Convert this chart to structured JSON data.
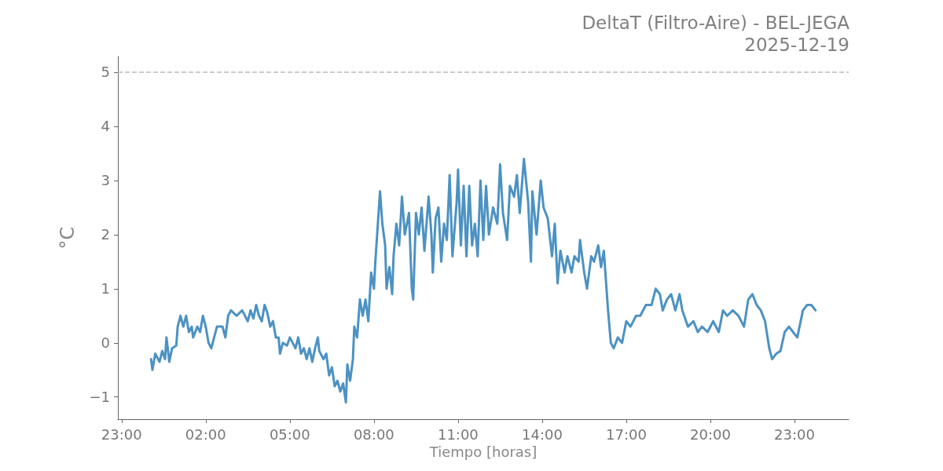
{
  "chart_data": {
    "type": "line",
    "title": "DeltaT (Filtro-Aire) - BEL-JEGA",
    "subtitle": "2025-12-19",
    "xlabel": "Tiempo [horas]",
    "ylabel": "°C",
    "x": [
      "2025-12-19T00:03",
      "2025-12-19T00:06",
      "2025-12-19T00:12",
      "2025-12-19T00:21",
      "2025-12-19T00:27",
      "2025-12-19T00:33",
      "2025-12-19T00:36",
      "2025-12-19T00:42",
      "2025-12-19T00:48",
      "2025-12-19T00:57",
      "2025-12-19T01:00",
      "2025-12-19T01:06",
      "2025-12-19T01:12",
      "2025-12-19T01:18",
      "2025-12-19T01:24",
      "2025-12-19T01:30",
      "2025-12-19T01:33",
      "2025-12-19T01:42",
      "2025-12-19T01:48",
      "2025-12-19T01:54",
      "2025-12-19T02:00",
      "2025-12-19T02:06",
      "2025-12-19T02:12",
      "2025-12-19T02:18",
      "2025-12-19T02:24",
      "2025-12-19T02:36",
      "2025-12-19T02:42",
      "2025-12-19T02:48",
      "2025-12-19T02:54",
      "2025-12-19T03:06",
      "2025-12-19T03:18",
      "2025-12-19T03:30",
      "2025-12-19T03:36",
      "2025-12-19T03:42",
      "2025-12-19T03:48",
      "2025-12-19T03:54",
      "2025-12-19T04:00",
      "2025-12-19T04:06",
      "2025-12-19T04:12",
      "2025-12-19T04:18",
      "2025-12-19T04:24",
      "2025-12-19T04:30",
      "2025-12-19T04:36",
      "2025-12-19T04:39",
      "2025-12-19T04:45",
      "2025-12-19T04:54",
      "2025-12-19T05:00",
      "2025-12-19T05:12",
      "2025-12-19T05:18",
      "2025-12-19T05:24",
      "2025-12-19T05:30",
      "2025-12-19T05:36",
      "2025-12-19T05:42",
      "2025-12-19T05:48",
      "2025-12-19T05:54",
      "2025-12-19T06:00",
      "2025-12-19T06:03",
      "2025-12-19T06:12",
      "2025-12-19T06:18",
      "2025-12-19T06:24",
      "2025-12-19T06:30",
      "2025-12-19T06:36",
      "2025-12-19T06:42",
      "2025-12-19T06:48",
      "2025-12-19T06:54",
      "2025-12-19T07:00",
      "2025-12-19T07:03",
      "2025-12-19T07:09",
      "2025-12-19T07:15",
      "2025-12-19T07:18",
      "2025-12-19T07:24",
      "2025-12-19T07:30",
      "2025-12-19T07:36",
      "2025-12-19T07:42",
      "2025-12-19T07:48",
      "2025-12-19T07:54",
      "2025-12-19T08:00",
      "2025-12-19T08:03",
      "2025-12-19T08:13",
      "2025-12-19T08:18",
      "2025-12-19T08:24",
      "2025-12-19T08:27",
      "2025-12-19T08:33",
      "2025-12-19T08:39",
      "2025-12-19T08:42",
      "2025-12-19T08:48",
      "2025-12-19T08:54",
      "2025-12-19T09:00",
      "2025-12-19T09:06",
      "2025-12-19T09:15",
      "2025-12-19T09:21",
      "2025-12-19T09:24",
      "2025-12-19T09:30",
      "2025-12-19T09:36",
      "2025-12-19T09:42",
      "2025-12-19T09:48",
      "2025-12-19T09:57",
      "2025-12-19T10:03",
      "2025-12-19T10:06",
      "2025-12-19T10:12",
      "2025-12-19T10:18",
      "2025-12-19T10:24",
      "2025-12-19T10:30",
      "2025-12-19T10:36",
      "2025-12-19T10:42",
      "2025-12-19T10:48",
      "2025-12-19T10:57",
      "2025-12-19T11:00",
      "2025-12-19T11:06",
      "2025-12-19T11:12",
      "2025-12-19T11:18",
      "2025-12-19T11:24",
      "2025-12-19T11:30",
      "2025-12-19T11:36",
      "2025-12-19T11:42",
      "2025-12-19T11:48",
      "2025-12-19T11:54",
      "2025-12-19T12:00",
      "2025-12-19T12:06",
      "2025-12-19T12:15",
      "2025-12-19T12:24",
      "2025-12-19T12:30",
      "2025-12-19T12:36",
      "2025-12-19T12:45",
      "2025-12-19T12:51",
      "2025-12-19T13:00",
      "2025-12-19T13:06",
      "2025-12-19T13:12",
      "2025-12-19T13:21",
      "2025-12-19T13:30",
      "2025-12-19T13:36",
      "2025-12-19T13:39",
      "2025-12-19T13:48",
      "2025-12-19T13:57",
      "2025-12-19T14:03",
      "2025-12-19T14:12",
      "2025-12-19T14:21",
      "2025-12-19T14:27",
      "2025-12-19T14:33",
      "2025-12-19T14:39",
      "2025-12-19T14:48",
      "2025-12-19T14:54",
      "2025-12-19T15:03",
      "2025-12-19T15:09",
      "2025-12-19T15:18",
      "2025-12-19T15:21",
      "2025-12-19T15:30",
      "2025-12-19T15:36",
      "2025-12-19T15:45",
      "2025-12-19T15:51",
      "2025-12-19T16:00",
      "2025-12-19T16:06",
      "2025-12-19T16:12",
      "2025-12-19T16:21",
      "2025-12-19T16:27",
      "2025-12-19T16:33",
      "2025-12-19T16:42",
      "2025-12-19T16:51",
      "2025-12-19T17:00",
      "2025-12-19T17:09",
      "2025-12-19T17:21",
      "2025-12-19T17:30",
      "2025-12-19T17:42",
      "2025-12-19T17:54",
      "2025-12-19T18:03",
      "2025-12-19T18:12",
      "2025-12-19T18:18",
      "2025-12-19T18:27",
      "2025-12-19T18:36",
      "2025-12-19T18:45",
      "2025-12-19T18:54",
      "2025-12-19T19:00",
      "2025-12-19T19:12",
      "2025-12-19T19:24",
      "2025-12-19T19:33",
      "2025-12-19T19:42",
      "2025-12-19T19:54",
      "2025-12-19T20:06",
      "2025-12-19T20:18",
      "2025-12-19T20:27",
      "2025-12-19T20:36",
      "2025-12-19T20:48",
      "2025-12-19T21:00",
      "2025-12-19T21:12",
      "2025-12-19T21:21",
      "2025-12-19T21:30",
      "2025-12-19T21:39",
      "2025-12-19T21:48",
      "2025-12-19T21:57",
      "2025-12-19T22:06",
      "2025-12-19T22:12",
      "2025-12-19T22:21",
      "2025-12-19T22:30",
      "2025-12-19T22:39",
      "2025-12-19T22:48",
      "2025-12-19T22:57",
      "2025-12-19T23:06",
      "2025-12-19T23:18",
      "2025-12-19T23:27",
      "2025-12-19T23:36",
      "2025-12-19T23:45"
    ],
    "series": [
      {
        "color": "#4c92c3",
        "values": [
          -0.3,
          -0.5,
          -0.2,
          -0.35,
          -0.15,
          -0.3,
          0.1,
          -0.35,
          -0.1,
          -0.05,
          0.3,
          0.5,
          0.3,
          0.5,
          0.2,
          0.3,
          0.1,
          0.3,
          0.2,
          0.5,
          0.3,
          0.0,
          -0.1,
          0.1,
          0.3,
          0.3,
          0.1,
          0.5,
          0.6,
          0.5,
          0.6,
          0.4,
          0.6,
          0.45,
          0.7,
          0.5,
          0.4,
          0.7,
          0.55,
          0.3,
          0.4,
          0.1,
          0.1,
          -0.2,
          0.0,
          -0.05,
          0.1,
          -0.1,
          0.1,
          -0.2,
          -0.1,
          -0.3,
          -0.1,
          -0.35,
          -0.1,
          0.1,
          -0.15,
          -0.3,
          -0.2,
          -0.6,
          -0.45,
          -0.8,
          -0.7,
          -0.9,
          -0.75,
          -1.1,
          -0.4,
          -0.7,
          -0.3,
          0.3,
          0.1,
          0.8,
          0.5,
          0.8,
          0.4,
          1.3,
          1.0,
          1.5,
          2.8,
          2.2,
          1.8,
          1.0,
          1.4,
          0.9,
          1.6,
          2.2,
          1.8,
          2.7,
          2.0,
          2.4,
          1.0,
          0.8,
          2.4,
          2.0,
          2.5,
          1.7,
          2.7,
          2.0,
          1.3,
          2.3,
          2.5,
          1.5,
          2.2,
          1.9,
          3.1,
          1.6,
          2.6,
          3.2,
          1.8,
          2.9,
          1.6,
          2.9,
          1.8,
          2.2,
          1.6,
          3.0,
          1.9,
          2.9,
          2.0,
          2.5,
          2.2,
          3.3,
          2.4,
          1.9,
          2.9,
          2.7,
          3.1,
          2.4,
          3.4,
          2.6,
          1.5,
          2.8,
          2.0,
          3.0,
          2.5,
          2.3,
          1.6,
          2.2,
          1.1,
          1.7,
          1.3,
          1.6,
          1.3,
          1.6,
          1.5,
          1.9,
          1.3,
          1.0,
          1.6,
          1.5,
          1.8,
          1.4,
          1.7,
          0.6,
          0.0,
          -0.1,
          0.1,
          0.0,
          0.4,
          0.3,
          0.5,
          0.5,
          0.7,
          0.7,
          1.0,
          0.9,
          0.6,
          0.8,
          0.9,
          0.6,
          0.9,
          0.6,
          0.3,
          0.4,
          0.2,
          0.3,
          0.2,
          0.4,
          0.2,
          0.6,
          0.5,
          0.6,
          0.5,
          0.3,
          0.8,
          0.9,
          0.7,
          0.6,
          0.4,
          -0.1,
          -0.3,
          -0.2,
          -0.15,
          0.2,
          0.3,
          0.2,
          0.1,
          0.6,
          0.7,
          0.7,
          0.6
        ]
      }
    ],
    "xlim": [
      "2025-12-18T22:52",
      "2025-12-20T00:56"
    ],
    "xticks": [
      {
        "value": "2025-12-18T23:00",
        "label": "23:00"
      },
      {
        "value": "2025-12-19T02:00",
        "label": "02:00"
      },
      {
        "value": "2025-12-19T05:00",
        "label": "05:00"
      },
      {
        "value": "2025-12-19T08:00",
        "label": "08:00"
      },
      {
        "value": "2025-12-19T11:00",
        "label": "11:00"
      },
      {
        "value": "2025-12-19T14:00",
        "label": "14:00"
      },
      {
        "value": "2025-12-19T17:00",
        "label": "17:00"
      },
      {
        "value": "2025-12-19T20:00",
        "label": "20:00"
      },
      {
        "value": "2025-12-19T23:00",
        "label": "23:00"
      }
    ],
    "ylim": [
      -1.41,
      5.29
    ],
    "yticks": [
      {
        "value": -1,
        "label": "−1"
      },
      0,
      1,
      2,
      3,
      4,
      5
    ],
    "ref_lines": [
      {
        "axis": "y",
        "value": 5,
        "color": "#bbbbbb",
        "line_style": "dashed"
      }
    ],
    "grid": false,
    "marker": "none",
    "line_style": "solid"
  }
}
